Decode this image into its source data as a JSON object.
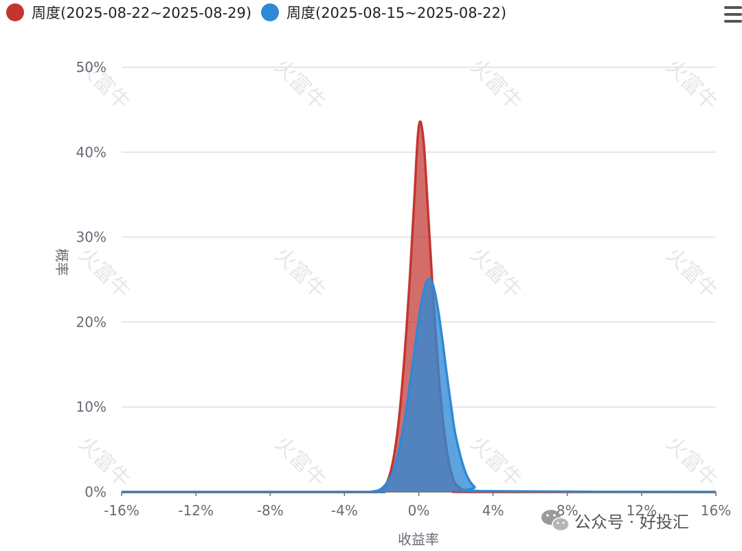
{
  "chart_data": {
    "type": "area",
    "title": "",
    "xlabel": "收益率",
    "ylabel": "概率",
    "xlim": [
      -16,
      16
    ],
    "ylim": [
      0,
      50
    ],
    "x_unit": "%",
    "y_unit": "%",
    "grid": true,
    "legend_position": "top-left",
    "x_ticks": [
      "-16%",
      "-12%",
      "-8%",
      "-4%",
      "0%",
      "4%",
      "8%",
      "12%",
      "16%"
    ],
    "y_ticks": [
      "0%",
      "10%",
      "20%",
      "30%",
      "40%",
      "50%"
    ],
    "series": [
      {
        "name": "周度(2025-08-22~2025-08-29)",
        "color": "#c23531",
        "x": [
          -16,
          -3,
          -2.5,
          -2,
          -1.75,
          -1.5,
          -1.25,
          -1,
          -0.75,
          -0.5,
          -0.25,
          0,
          0.25,
          0.5,
          0.75,
          1,
          1.25,
          1.5,
          1.75,
          2,
          2.5,
          3,
          16
        ],
        "y": [
          0,
          0,
          0.03,
          0.3,
          0.95,
          2.5,
          5.4,
          10.0,
          16.5,
          24.5,
          34.0,
          43.0,
          41.5,
          33.0,
          24.0,
          16.0,
          9.5,
          5.0,
          2.3,
          0.9,
          0.15,
          0,
          0
        ]
      },
      {
        "name": "周度(2025-08-15~2025-08-22)",
        "color": "#2f89d6",
        "x": [
          -16,
          -3,
          -2.5,
          -2,
          -1.5,
          -1.25,
          -1,
          -0.75,
          -0.5,
          -0.25,
          0,
          0.25,
          0.5,
          0.75,
          1,
          1.25,
          1.5,
          1.75,
          2,
          2.5,
          3,
          3.5,
          16
        ],
        "y": [
          0,
          0,
          0.05,
          0.4,
          1.8,
          3.3,
          5.6,
          8.6,
          12.3,
          16.3,
          20.3,
          23.5,
          25.0,
          24.5,
          22.0,
          18.3,
          14.0,
          10.0,
          6.5,
          2.4,
          0.6,
          0.1,
          0
        ]
      }
    ]
  },
  "watermark": {
    "text": "火富牛"
  },
  "footer": {
    "text": "公众号 · 好投汇",
    "icon": "wechat-icon"
  },
  "toolbar": {
    "menu_icon": "menu-icon"
  }
}
